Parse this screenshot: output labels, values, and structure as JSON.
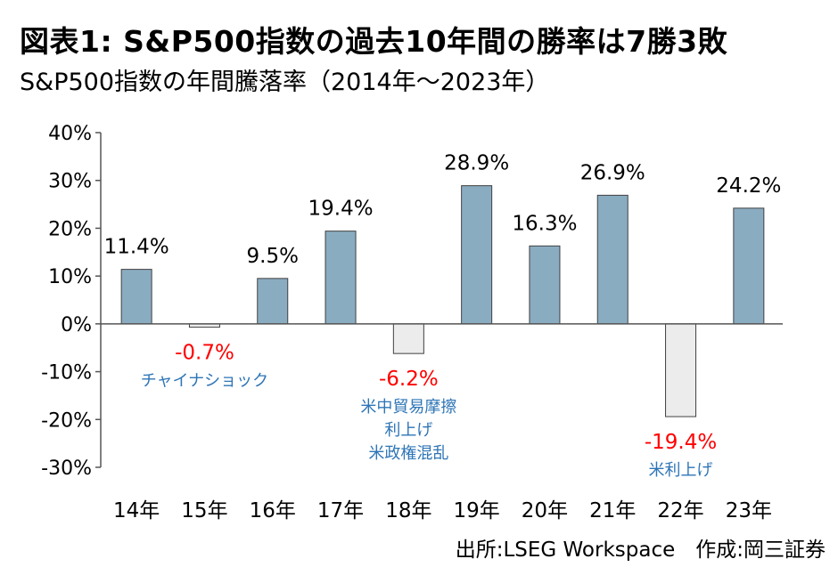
{
  "title": "図表1: S&P500指数の過去10年間の勝率は7勝3敗",
  "subtitle": "S&P500指数の年間騰落率（2014年～2023年）",
  "source": "出所:LSEG Workspace　作成:岡三証券",
  "colors": {
    "positive_bar": "#8aacc1",
    "negative_bar": "#ececec",
    "bar_stroke": "#404040",
    "negative_label": "#ff0000",
    "annotation": "#2e75b6"
  },
  "chart_data": {
    "type": "bar",
    "categories": [
      "14年",
      "15年",
      "16年",
      "17年",
      "18年",
      "19年",
      "20年",
      "21年",
      "22年",
      "23年"
    ],
    "values": [
      11.4,
      -0.7,
      9.5,
      19.4,
      -6.2,
      28.9,
      16.3,
      26.9,
      -19.4,
      24.2
    ],
    "value_labels": [
      "11.4%",
      "-0.7%",
      "9.5%",
      "19.4%",
      "-6.2%",
      "28.9%",
      "16.3%",
      "26.9%",
      "-19.4%",
      "24.2%"
    ],
    "ylim": [
      -30,
      40
    ],
    "y_ticks": [
      40,
      30,
      20,
      10,
      0,
      -10,
      -20,
      -30
    ],
    "y_tick_labels": [
      "40%",
      "30%",
      "20%",
      "10%",
      "0%",
      "-10%",
      "-20%",
      "-30%"
    ],
    "grid": false,
    "annotations": [
      {
        "category": "15年",
        "lines": [
          "チャイナショック"
        ]
      },
      {
        "category": "18年",
        "lines": [
          "米中貿易摩擦",
          "利上げ",
          "米政権混乱"
        ]
      },
      {
        "category": "22年",
        "lines": [
          "米利上げ"
        ]
      }
    ]
  }
}
